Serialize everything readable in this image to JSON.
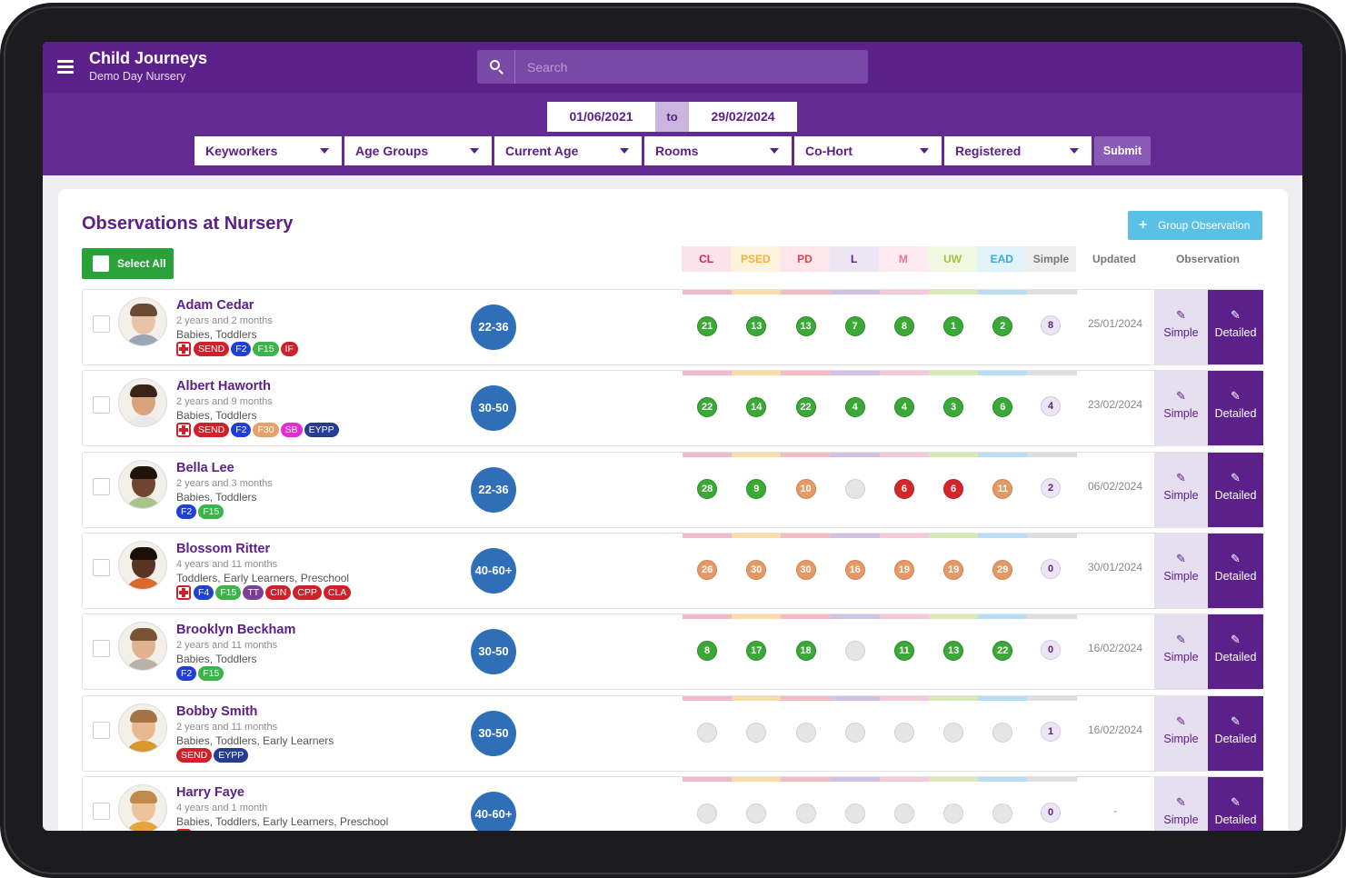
{
  "app": {
    "title": "Child Journeys",
    "subtitle": "Demo Day Nursery"
  },
  "search": {
    "placeholder": "Search"
  },
  "dates": {
    "from": "01/06/2021",
    "to_label": "to",
    "to": "29/02/2024"
  },
  "filters": [
    "Keyworkers",
    "Age Groups",
    "Current Age",
    "Rooms",
    "Co-Hort",
    "Registered"
  ],
  "submit_label": "Submit",
  "page": {
    "title": "Observations at Nursery",
    "group_button": "Group Observation",
    "select_all": "Select All"
  },
  "areas": [
    {
      "label": "CL",
      "color": "#d51e5d",
      "bg": "#fbe3ec",
      "stripe": "#f2b8cd"
    },
    {
      "label": "PSED",
      "color": "#f2b533",
      "bg": "#fdf3dc",
      "stripe": "#f8dea6"
    },
    {
      "label": "PD",
      "color": "#e4425a",
      "bg": "#fce6ea",
      "stripe": "#f5bcc6"
    },
    {
      "label": "L",
      "color": "#5b2089",
      "bg": "#ece6f4",
      "stripe": "#d0c2e2"
    },
    {
      "label": "M",
      "color": "#e9739a",
      "bg": "#fdebf1",
      "stripe": "#f6c9d8"
    },
    {
      "label": "UW",
      "color": "#9fc43a",
      "bg": "#f1f7e2",
      "stripe": "#d9e9b5"
    },
    {
      "label": "EAD",
      "color": "#3aa6e0",
      "bg": "#e3f3fb",
      "stripe": "#b8def3"
    },
    {
      "label": "Simple",
      "color": "#777777",
      "bg": "#eeeeee",
      "stripe": "#dedede"
    }
  ],
  "headers": {
    "updated": "Updated",
    "observation": "Observation"
  },
  "buttons": {
    "simple": "Simple",
    "detailed": "Detailed"
  },
  "tag_colors": {
    "SEND": "#d0202a",
    "F2": "#1f3fd6",
    "F15": "#3bb54a",
    "IF": "#d0202a",
    "F30": "#e8a06a",
    "SB": "#e52bd6",
    "EYPP": "#253c8f",
    "F4": "#1f3fd6",
    "TT": "#7b3f98",
    "CIN": "#d0202a",
    "CPP": "#d0202a",
    "CLA": "#d0202a"
  },
  "children": [
    {
      "name": "Adam Cedar",
      "age": "2 years and 2 months",
      "groups": "Babies, Toddlers",
      "medical": true,
      "tags": [
        "SEND",
        "F2",
        "F15",
        "IF"
      ],
      "band": "22-36",
      "scores": [
        {
          "v": "21",
          "c": "g"
        },
        {
          "v": "13",
          "c": "g"
        },
        {
          "v": "13",
          "c": "g"
        },
        {
          "v": "7",
          "c": "g"
        },
        {
          "v": "8",
          "c": "g"
        },
        {
          "v": "1",
          "c": "g"
        },
        {
          "v": "2",
          "c": "g"
        }
      ],
      "simple": "8",
      "updated": "25/01/2024",
      "skin": "#e8c4a6",
      "hair": "#6b4a33",
      "shirt": "#9aa6b6"
    },
    {
      "name": "Albert Haworth",
      "age": "2 years and 9 months",
      "groups": "Babies, Toddlers",
      "medical": true,
      "tags": [
        "SEND",
        "F2",
        "F30",
        "SB",
        "EYPP"
      ],
      "band": "30-50",
      "scores": [
        {
          "v": "22",
          "c": "g"
        },
        {
          "v": "14",
          "c": "g"
        },
        {
          "v": "22",
          "c": "g"
        },
        {
          "v": "4",
          "c": "g"
        },
        {
          "v": "4",
          "c": "g"
        },
        {
          "v": "3",
          "c": "g"
        },
        {
          "v": "6",
          "c": "g"
        }
      ],
      "simple": "4",
      "updated": "23/02/2024",
      "skin": "#d9a37c",
      "hair": "#3b2417",
      "shirt": "#e9e9e9"
    },
    {
      "name": "Bella Lee",
      "age": "2 years and 3 months",
      "groups": "Babies, Toddlers",
      "medical": false,
      "tags": [
        "F2",
        "F15"
      ],
      "band": "22-36",
      "scores": [
        {
          "v": "28",
          "c": "g"
        },
        {
          "v": "9",
          "c": "g"
        },
        {
          "v": "10",
          "c": "o"
        },
        {
          "v": "",
          "c": "e"
        },
        {
          "v": "6",
          "c": "r"
        },
        {
          "v": "6",
          "c": "r"
        },
        {
          "v": "11",
          "c": "o"
        }
      ],
      "simple": "2",
      "updated": "06/02/2024",
      "skin": "#6f4530",
      "hair": "#1f130c",
      "shirt": "#a8c48a"
    },
    {
      "name": "Blossom Ritter",
      "age": "4 years and 11 months",
      "groups": "Toddlers, Early Learners, Preschool",
      "medical": true,
      "tags": [
        "F4",
        "F15",
        "TT",
        "CIN",
        "CPP",
        "CLA"
      ],
      "band": "40-60+",
      "scores": [
        {
          "v": "26",
          "c": "o"
        },
        {
          "v": "30",
          "c": "o"
        },
        {
          "v": "30",
          "c": "o"
        },
        {
          "v": "16",
          "c": "o"
        },
        {
          "v": "19",
          "c": "o"
        },
        {
          "v": "19",
          "c": "o"
        },
        {
          "v": "29",
          "c": "o"
        }
      ],
      "simple": "0",
      "updated": "30/01/2024",
      "skin": "#5a3422",
      "hair": "#1a0f09",
      "shirt": "#d96a2c"
    },
    {
      "name": "Brooklyn Beckham",
      "age": "2 years and 11 months",
      "groups": "Babies, Toddlers",
      "medical": false,
      "tags": [
        "F2",
        "F15"
      ],
      "band": "30-50",
      "scores": [
        {
          "v": "8",
          "c": "g"
        },
        {
          "v": "17",
          "c": "g"
        },
        {
          "v": "18",
          "c": "g"
        },
        {
          "v": "",
          "c": "e"
        },
        {
          "v": "11",
          "c": "g"
        },
        {
          "v": "13",
          "c": "g"
        },
        {
          "v": "22",
          "c": "g"
        }
      ],
      "simple": "0",
      "updated": "16/02/2024",
      "skin": "#e0b291",
      "hair": "#7a5235",
      "shirt": "#b9b2a8"
    },
    {
      "name": "Bobby Smith",
      "age": "2 years and 11 months",
      "groups": "Babies, Toddlers, Early Learners",
      "medical": false,
      "tags": [
        "SEND",
        "EYPP"
      ],
      "band": "30-50",
      "scores": [
        {
          "v": "",
          "c": "e"
        },
        {
          "v": "",
          "c": "e"
        },
        {
          "v": "",
          "c": "e"
        },
        {
          "v": "",
          "c": "e"
        },
        {
          "v": "",
          "c": "e"
        },
        {
          "v": "",
          "c": "e"
        },
        {
          "v": "",
          "c": "e"
        }
      ],
      "simple": "1",
      "updated": "16/02/2024",
      "skin": "#e8b98f",
      "hair": "#a27446",
      "shirt": "#d6992f"
    },
    {
      "name": "Harry Faye",
      "age": "4 years and 1 month",
      "groups": "Babies, Toddlers, Early Learners, Preschool",
      "medical": true,
      "tags": [],
      "band": "40-60+",
      "scores": [
        {
          "v": "",
          "c": "e"
        },
        {
          "v": "",
          "c": "e"
        },
        {
          "v": "",
          "c": "e"
        },
        {
          "v": "",
          "c": "e"
        },
        {
          "v": "",
          "c": "e"
        },
        {
          "v": "",
          "c": "e"
        },
        {
          "v": "",
          "c": "e"
        }
      ],
      "simple": "0",
      "updated": "-",
      "skin": "#edc39b",
      "hair": "#c08a4e",
      "shirt": "#e8a33a"
    }
  ]
}
